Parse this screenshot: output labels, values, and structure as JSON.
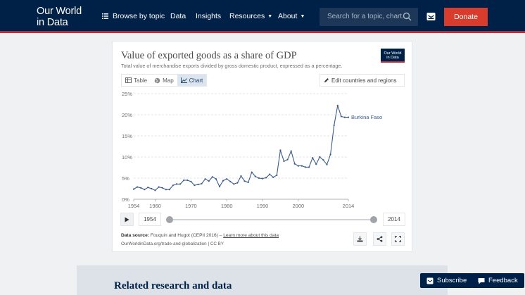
{
  "nav": {
    "logo_line1": "Our World",
    "logo_line2": "in Data",
    "browse": "Browse by topic",
    "data": "Data",
    "insights": "Insights",
    "resources": "Resources",
    "about": "About",
    "search_placeholder": "Search for a topic, chart...",
    "donate": "Donate",
    "colors": {
      "bg": "#002147",
      "accent": "#be2b39",
      "donate": "#d73c2c"
    }
  },
  "chart_card": {
    "title": "Value of exported goods as a share of GDP",
    "subtitle": "Total value of merchandise exports divided by gross domestic product, expressed as a percentage.",
    "logo_line1": "Our World",
    "logo_line2": "in Data",
    "tabs": [
      {
        "label": "Table",
        "icon": "table-icon",
        "active": false
      },
      {
        "label": "Map",
        "icon": "globe-icon",
        "active": false
      },
      {
        "label": "Chart",
        "icon": "line-chart-icon",
        "active": true
      }
    ],
    "edit_label": "Edit countries and regions",
    "timeline": {
      "start": "1954",
      "end": "2014"
    },
    "source_label": "Data source:",
    "source_text": "Fouquin and Hugot (CEPII 2016) –",
    "source_link": "Learn more about this data",
    "url_text": "OurWorldinData.org/trade-and-globalization | CC BY"
  },
  "chart_data": {
    "type": "line",
    "title": "Value of exported goods as a share of GDP",
    "subtitle": "Total value of merchandise exports divided by gross domestic product, expressed as a percentage.",
    "xlabel": "",
    "ylabel": "",
    "ylim": [
      0,
      25
    ],
    "xlim": [
      1954,
      2014
    ],
    "y_ticks": [
      "0%",
      "5%",
      "10%",
      "15%",
      "20%",
      "25%"
    ],
    "y_tick_values": [
      0,
      5,
      10,
      15,
      20,
      25
    ],
    "x_ticks": [
      "1954",
      "1960",
      "1970",
      "1980",
      "1990",
      "2000",
      "2014"
    ],
    "x_tick_values": [
      1954,
      1960,
      1970,
      1980,
      1990,
      2000,
      2014
    ],
    "grid": true,
    "series": [
      {
        "name": "Burkina Faso",
        "color": "#3c5b8c",
        "x": [
          1954,
          1955,
          1956,
          1957,
          1958,
          1959,
          1960,
          1961,
          1962,
          1963,
          1964,
          1965,
          1966,
          1967,
          1968,
          1969,
          1970,
          1971,
          1972,
          1973,
          1974,
          1975,
          1976,
          1977,
          1978,
          1979,
          1980,
          1981,
          1982,
          1983,
          1984,
          1985,
          1986,
          1987,
          1988,
          1989,
          1990,
          1991,
          1992,
          1993,
          1994,
          1995,
          1996,
          1997,
          1998,
          1999,
          2000,
          2001,
          2002,
          2003,
          2004,
          2005,
          2006,
          2007,
          2008,
          2009,
          2010,
          2011,
          2012,
          2013,
          2014
        ],
        "y": [
          2.4,
          2.9,
          2.7,
          2.3,
          2.8,
          2.5,
          2.1,
          2.9,
          2.7,
          2.3,
          2.3,
          3.3,
          3.6,
          3.6,
          4.5,
          4.5,
          4.2,
          3.3,
          3.5,
          3.7,
          4.8,
          4.3,
          5.3,
          4.8,
          3.0,
          4.4,
          4.8,
          4.2,
          3.6,
          3.9,
          5.5,
          4.3,
          4.0,
          6.4,
          5.4,
          5.0,
          4.9,
          5.1,
          5.9,
          5.2,
          5.7,
          11.6,
          9.0,
          9.4,
          11.4,
          8.4,
          7.9,
          7.9,
          7.6,
          7.6,
          9.8,
          8.3,
          10.0,
          9.3,
          8.2,
          10.6,
          17.5,
          22.2,
          19.6,
          19.4,
          19.4
        ]
      }
    ]
  },
  "related": {
    "title": "Related research and data"
  },
  "floating": {
    "subscribe": "Subscribe",
    "feedback": "Feedback"
  }
}
